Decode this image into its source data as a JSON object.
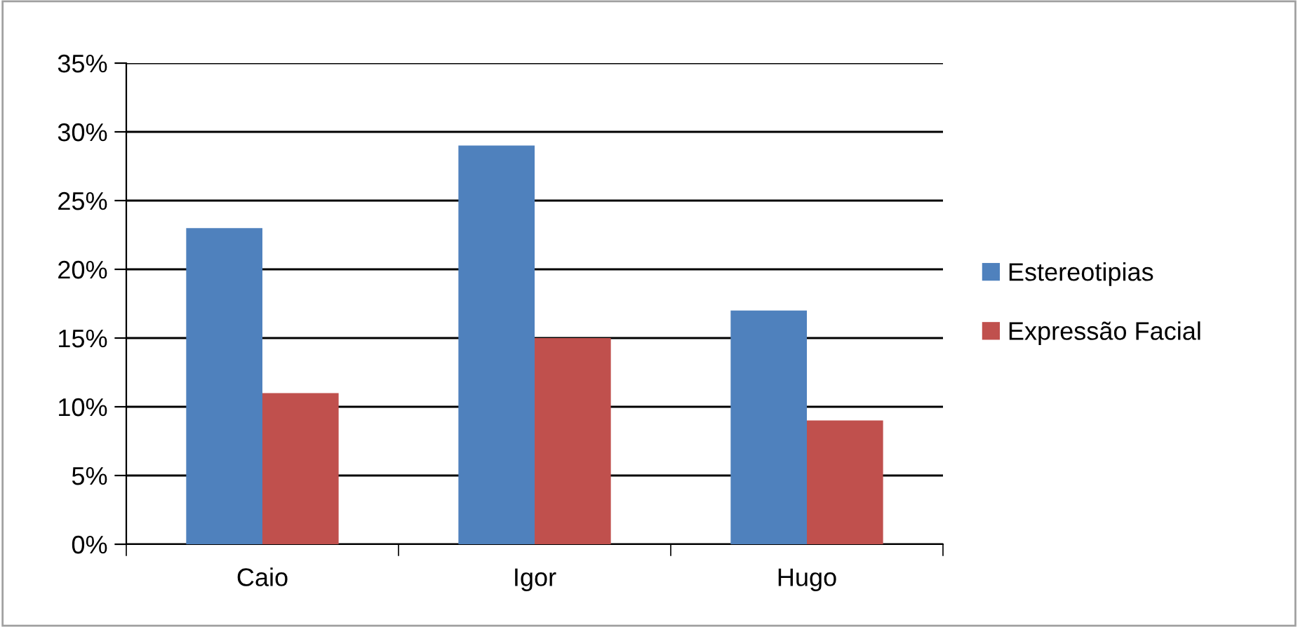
{
  "chart_data": {
    "type": "bar",
    "categories": [
      "Caio",
      "Igor",
      "Hugo"
    ],
    "series": [
      {
        "name": "Estereotipias",
        "color": "#4f81bd",
        "values": [
          23,
          29,
          17
        ]
      },
      {
        "name": "Expressão Facial",
        "color": "#c0504d",
        "values": [
          11,
          15,
          9
        ]
      }
    ],
    "ylim": [
      0,
      35
    ],
    "yticks": [
      {
        "value": 0,
        "label": "0%"
      },
      {
        "value": 5,
        "label": "5%"
      },
      {
        "value": 10,
        "label": "10%"
      },
      {
        "value": 15,
        "label": "15%"
      },
      {
        "value": 20,
        "label": "20%"
      },
      {
        "value": 25,
        "label": "25%"
      },
      {
        "value": 30,
        "label": "30%"
      },
      {
        "value": 35,
        "label": "35%"
      }
    ],
    "grid": "y",
    "legend": "right"
  }
}
